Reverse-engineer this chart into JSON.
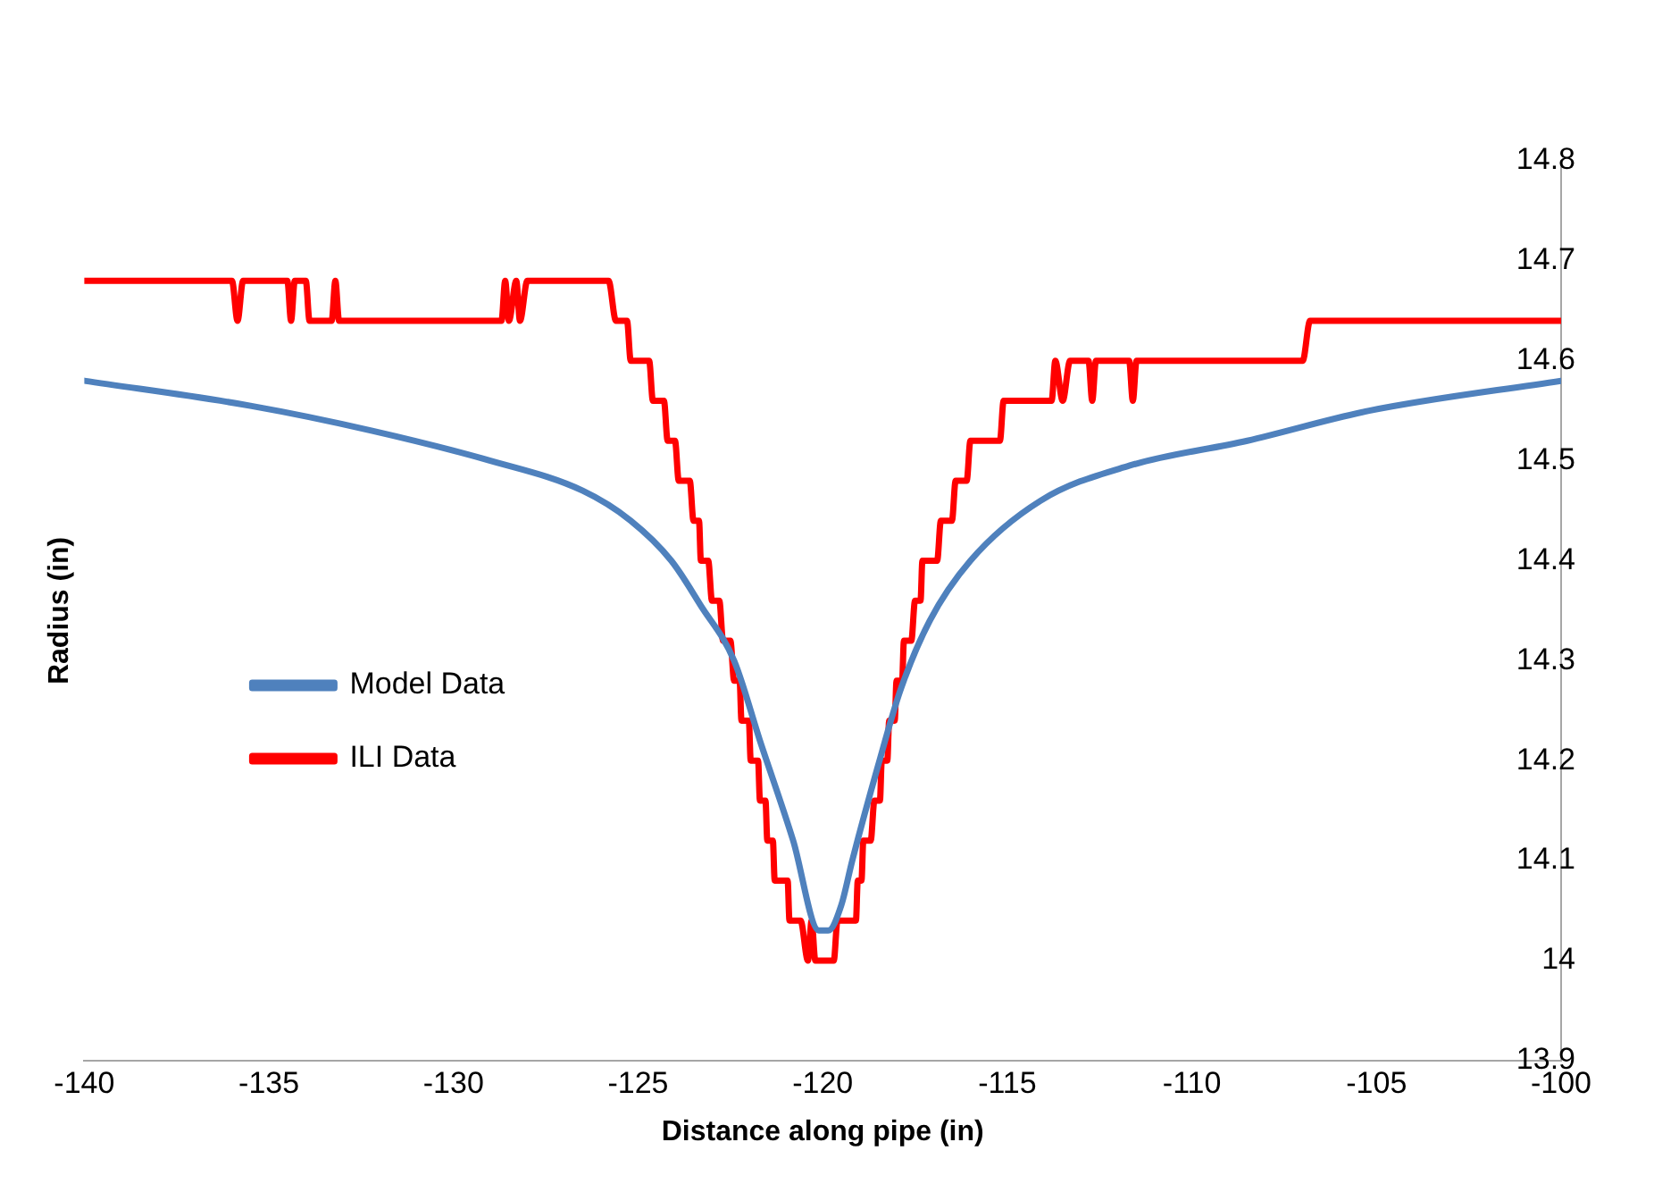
{
  "chart_data": {
    "type": "line",
    "xlabel": "Distance along pipe (in)",
    "ylabel": "Radius (in)",
    "xlim": [
      -140,
      -100
    ],
    "xticks": [
      -140,
      -135,
      -130,
      -125,
      -120,
      -115,
      -110,
      -105,
      -100
    ],
    "ylim": [
      13.9,
      14.8
    ],
    "yticks": [
      13.9,
      14,
      14.1,
      14.2,
      14.3,
      14.4,
      14.5,
      14.6,
      14.7,
      14.8
    ],
    "grid": false,
    "legend": "left",
    "marker": "none",
    "line_style": "solid",
    "series": [
      {
        "name": "Model Data",
        "color": "#4f81bd",
        "x": [
          -140,
          -135.5,
          -132.2,
          -129.0,
          -126.5,
          -125.2,
          -124.1,
          -123.3,
          -122.4,
          -121.7,
          -120.8,
          -120.1,
          -119.85,
          -119.5,
          -119.2,
          -118.5,
          -117.9,
          -117.1,
          -116.0,
          -114.1,
          -111.7,
          -108.5,
          -105.2,
          -100
        ],
        "values": [
          14.58,
          14.555,
          14.53,
          14.5,
          14.47,
          14.44,
          14.4,
          14.355,
          14.3,
          14.22,
          14.12,
          14.03,
          14.03,
          14.055,
          14.1,
          14.195,
          14.27,
          14.34,
          14.4,
          14.46,
          14.495,
          14.52,
          14.55,
          14.58
        ]
      },
      {
        "name": "ILI Data",
        "color": "#ff0000",
        "x": [
          -140,
          -136.0,
          -135.85,
          -135.7,
          -134.5,
          -134.4,
          -134.3,
          -134.0,
          -133.9,
          -133.3,
          -133.2,
          -133.1,
          -128.7,
          -128.6,
          -128.5,
          -128.3,
          -128.2,
          -128.0,
          -125.8,
          -125.6,
          -125.3,
          -125.2,
          -124.7,
          -124.6,
          -124.3,
          -124.2,
          -124.0,
          -123.9,
          -123.6,
          -123.5,
          -123.35,
          -123.3,
          -123.1,
          -123.0,
          -122.8,
          -122.7,
          -122.5,
          -122.4,
          -122.25,
          -122.2,
          -122.0,
          -121.95,
          -121.75,
          -121.7,
          -121.55,
          -121.5,
          -121.35,
          -121.3,
          -120.95,
          -120.9,
          -120.6,
          -120.4,
          -120.3,
          -120.2,
          -119.7,
          -119.6,
          -119.1,
          -119.05,
          -118.95,
          -118.9,
          -118.7,
          -118.6,
          -118.45,
          -118.4,
          -118.25,
          -118.2,
          -118.05,
          -118.0,
          -117.85,
          -117.8,
          -117.6,
          -117.5,
          -117.35,
          -117.3,
          -116.9,
          -116.8,
          -116.5,
          -116.4,
          -116.1,
          -116.0,
          -115.2,
          -115.1,
          -113.8,
          -113.7,
          -113.5,
          -113.3,
          -112.8,
          -112.7,
          -112.6,
          -111.7,
          -111.6,
          -111.5,
          -107.0,
          -106.8,
          -100
        ],
        "values": [
          14.68,
          14.68,
          14.64,
          14.68,
          14.68,
          14.64,
          14.68,
          14.68,
          14.64,
          14.64,
          14.68,
          14.64,
          14.64,
          14.68,
          14.64,
          14.68,
          14.64,
          14.68,
          14.68,
          14.64,
          14.64,
          14.6,
          14.6,
          14.56,
          14.56,
          14.52,
          14.52,
          14.48,
          14.48,
          14.44,
          14.44,
          14.4,
          14.4,
          14.36,
          14.36,
          14.32,
          14.32,
          14.28,
          14.28,
          14.24,
          14.24,
          14.2,
          14.2,
          14.16,
          14.16,
          14.12,
          14.12,
          14.08,
          14.08,
          14.04,
          14.04,
          14.0,
          14.04,
          14.0,
          14.0,
          14.04,
          14.04,
          14.08,
          14.08,
          14.12,
          14.12,
          14.16,
          14.16,
          14.2,
          14.2,
          14.24,
          14.24,
          14.28,
          14.28,
          14.32,
          14.32,
          14.36,
          14.36,
          14.4,
          14.4,
          14.44,
          14.44,
          14.48,
          14.48,
          14.52,
          14.52,
          14.56,
          14.56,
          14.6,
          14.56,
          14.6,
          14.6,
          14.56,
          14.6,
          14.6,
          14.56,
          14.6,
          14.6,
          14.64,
          14.64
        ]
      }
    ]
  }
}
